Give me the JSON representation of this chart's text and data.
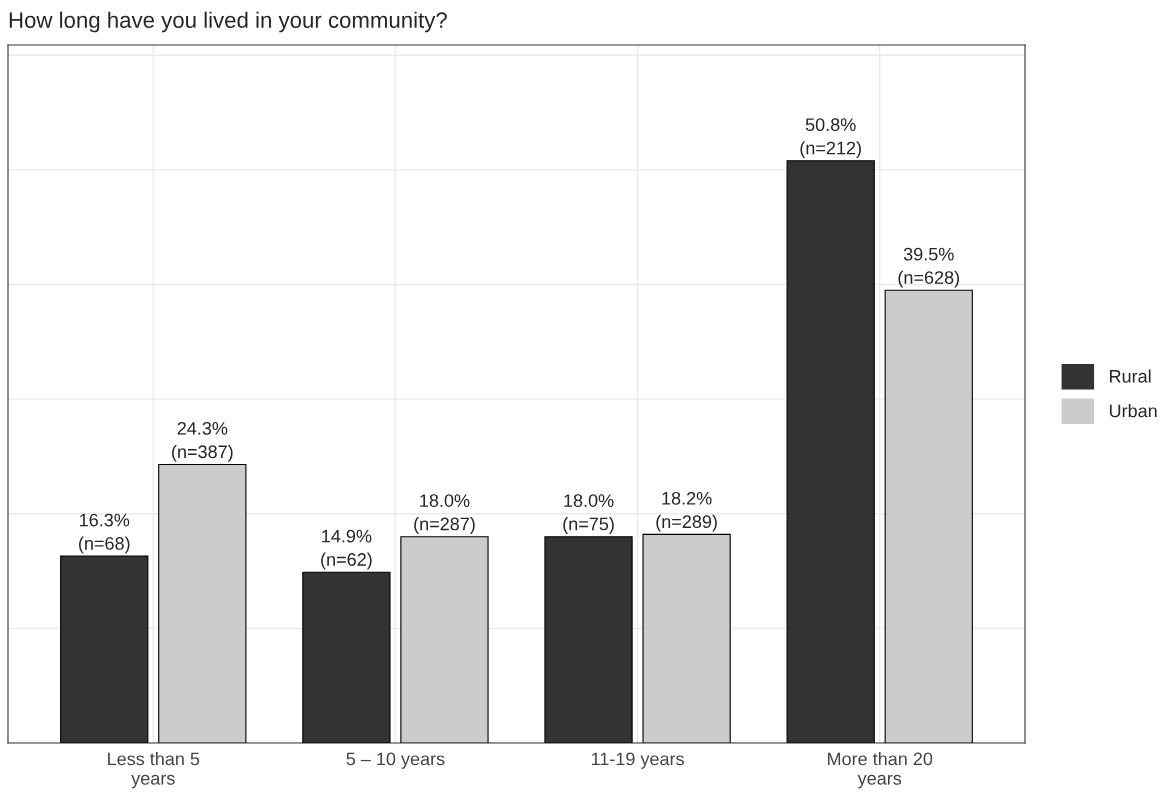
{
  "chart_data": {
    "type": "bar",
    "title": "How long have you lived in your community?",
    "categories": [
      "Less than 5\nyears",
      "5 – 10 years",
      "11-19 years",
      "More than 20\nyears"
    ],
    "series": [
      {
        "name": "Rural",
        "color": "#333333",
        "values": [
          16.3,
          14.9,
          18.0,
          50.8
        ],
        "value_labels": [
          "16.3%\n(n=68)",
          "14.9%\n(n=62)",
          "18.0%\n(n=75)",
          "50.8%\n(n=212)"
        ]
      },
      {
        "name": "Urban",
        "color": "#cccccc",
        "values": [
          24.3,
          18.0,
          18.2,
          39.5
        ],
        "value_labels": [
          "24.3%\n(n=387)",
          "18.0%\n(n=287)",
          "18.2%\n(n=289)",
          "39.5%\n(n=628)"
        ]
      }
    ],
    "ylim": [
      0,
      60.9
    ],
    "yticks": [
      {
        "value": 0,
        "label": null
      },
      {
        "value": 10,
        "label": null
      },
      {
        "value": 20,
        "label": null
      },
      {
        "value": 30,
        "label": null
      },
      {
        "value": 40,
        "label": null
      },
      {
        "value": 50,
        "label": null
      },
      {
        "value": 60,
        "label": null
      }
    ],
    "tick_labels": "x",
    "grid": true,
    "legend": "right"
  }
}
